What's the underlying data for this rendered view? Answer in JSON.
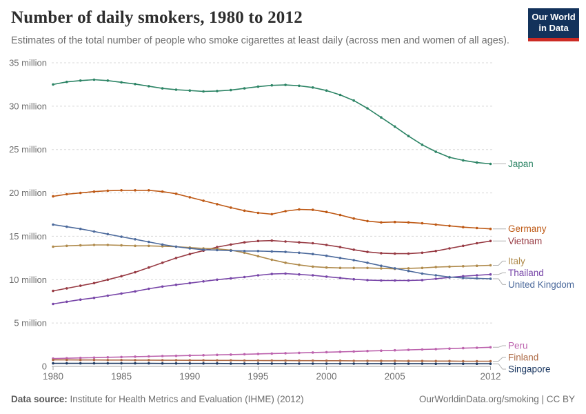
{
  "header": {
    "title": "Number of daily smokers, 1980 to 2012",
    "subtitle": "Estimates of the total number of people who smoke cigarettes at least daily (across men and women of all ages).",
    "logo_line1": "Our World",
    "logo_line2": "in Data",
    "logo_bg_color": "#13325B",
    "logo_stripe_color": "#CC2B24"
  },
  "footer": {
    "data_source_label": "Data source: ",
    "data_source_value": "Institute for Health Metrics and Evaluation (IHME) (2012)",
    "link_text": "OurWorldinData.org/smoking | CC BY"
  },
  "chart_data": {
    "type": "line",
    "title": "Number of daily smokers, 1980 to 2012",
    "xlabel": "",
    "ylabel": "",
    "unit": "million people",
    "xlim": [
      1980,
      2012
    ],
    "ylim": [
      0,
      35
    ],
    "grid": true,
    "legend_position": "right-end-labels",
    "x_ticks": [
      1980,
      1985,
      1990,
      1995,
      2000,
      2005,
      2012
    ],
    "y_ticks": [
      0,
      5,
      10,
      15,
      20,
      25,
      30,
      35
    ],
    "y_tick_suffix": " million",
    "x": [
      1980,
      1981,
      1982,
      1983,
      1984,
      1985,
      1986,
      1987,
      1988,
      1989,
      1990,
      1991,
      1992,
      1993,
      1994,
      1995,
      1996,
      1997,
      1998,
      1999,
      2000,
      2001,
      2002,
      2003,
      2004,
      2005,
      2006,
      2007,
      2008,
      2009,
      2010,
      2011,
      2012
    ],
    "series": [
      {
        "name": "Japan",
        "color": "#2C8465",
        "values": [
          32.5,
          32.8,
          32.95,
          33.05,
          32.95,
          32.75,
          32.55,
          32.3,
          32.05,
          31.9,
          31.8,
          31.7,
          31.75,
          31.85,
          32.05,
          32.25,
          32.4,
          32.45,
          32.35,
          32.15,
          31.8,
          31.3,
          30.65,
          29.75,
          28.7,
          27.65,
          26.55,
          25.55,
          24.75,
          24.1,
          23.75,
          23.5,
          23.35
        ]
      },
      {
        "name": "Germany",
        "color": "#BE5915",
        "values": [
          19.6,
          19.85,
          20.0,
          20.15,
          20.25,
          20.3,
          20.3,
          20.3,
          20.15,
          19.9,
          19.5,
          19.1,
          18.7,
          18.3,
          17.95,
          17.7,
          17.55,
          17.9,
          18.1,
          18.05,
          17.8,
          17.45,
          17.05,
          16.75,
          16.6,
          16.65,
          16.6,
          16.5,
          16.35,
          16.2,
          16.05,
          15.95,
          15.85
        ]
      },
      {
        "name": "Vietnam",
        "color": "#973A43",
        "values": [
          8.7,
          9.0,
          9.3,
          9.6,
          10.0,
          10.4,
          10.85,
          11.4,
          11.95,
          12.5,
          12.95,
          13.35,
          13.75,
          14.05,
          14.3,
          14.45,
          14.5,
          14.4,
          14.3,
          14.2,
          14.0,
          13.75,
          13.45,
          13.2,
          13.05,
          13.0,
          13.0,
          13.1,
          13.3,
          13.6,
          13.9,
          14.2,
          14.45
        ]
      },
      {
        "name": "Italy",
        "color": "#AF8A4B",
        "values": [
          13.8,
          13.9,
          13.95,
          14.0,
          14.0,
          13.95,
          13.9,
          13.9,
          13.85,
          13.8,
          13.7,
          13.6,
          13.55,
          13.4,
          13.1,
          12.7,
          12.3,
          11.95,
          11.7,
          11.5,
          11.4,
          11.35,
          11.35,
          11.35,
          11.3,
          11.25,
          11.3,
          11.35,
          11.45,
          11.5,
          11.55,
          11.6,
          11.65
        ]
      },
      {
        "name": "Thailand",
        "color": "#7846A8",
        "values": [
          7.2,
          7.45,
          7.7,
          7.9,
          8.15,
          8.4,
          8.65,
          8.95,
          9.2,
          9.4,
          9.6,
          9.8,
          10.0,
          10.15,
          10.3,
          10.5,
          10.65,
          10.7,
          10.6,
          10.5,
          10.35,
          10.2,
          10.05,
          9.95,
          9.9,
          9.9,
          9.9,
          9.95,
          10.1,
          10.25,
          10.4,
          10.5,
          10.6
        ]
      },
      {
        "name": "United Kingdom",
        "color": "#4C6A9C",
        "values": [
          16.35,
          16.1,
          15.85,
          15.55,
          15.25,
          14.95,
          14.65,
          14.35,
          14.05,
          13.8,
          13.6,
          13.45,
          13.4,
          13.35,
          13.3,
          13.3,
          13.25,
          13.2,
          13.1,
          12.95,
          12.75,
          12.5,
          12.25,
          11.95,
          11.6,
          11.3,
          11.0,
          10.7,
          10.5,
          10.3,
          10.2,
          10.15,
          10.1
        ]
      },
      {
        "name": "Peru",
        "color": "#BC62AD",
        "values": [
          0.9,
          0.94,
          0.98,
          1.01,
          1.05,
          1.08,
          1.12,
          1.15,
          1.19,
          1.22,
          1.26,
          1.29,
          1.33,
          1.36,
          1.4,
          1.44,
          1.48,
          1.52,
          1.56,
          1.6,
          1.64,
          1.68,
          1.72,
          1.77,
          1.81,
          1.85,
          1.9,
          1.95,
          2.0,
          2.05,
          2.1,
          2.15,
          2.2
        ]
      },
      {
        "name": "Finland",
        "color": "#AD6A45",
        "values": [
          0.75,
          0.75,
          0.74,
          0.74,
          0.73,
          0.73,
          0.72,
          0.72,
          0.71,
          0.71,
          0.7,
          0.7,
          0.69,
          0.69,
          0.68,
          0.68,
          0.67,
          0.67,
          0.66,
          0.66,
          0.65,
          0.65,
          0.64,
          0.64,
          0.63,
          0.63,
          0.62,
          0.62,
          0.61,
          0.61,
          0.6,
          0.6,
          0.6
        ]
      },
      {
        "name": "Singapore",
        "color": "#1F3B64",
        "values": [
          0.35,
          0.35,
          0.35,
          0.35,
          0.35,
          0.35,
          0.35,
          0.35,
          0.34,
          0.34,
          0.34,
          0.34,
          0.34,
          0.33,
          0.33,
          0.33,
          0.33,
          0.33,
          0.32,
          0.32,
          0.32,
          0.32,
          0.32,
          0.31,
          0.31,
          0.31,
          0.31,
          0.31,
          0.3,
          0.3,
          0.3,
          0.3,
          0.3
        ]
      }
    ]
  }
}
